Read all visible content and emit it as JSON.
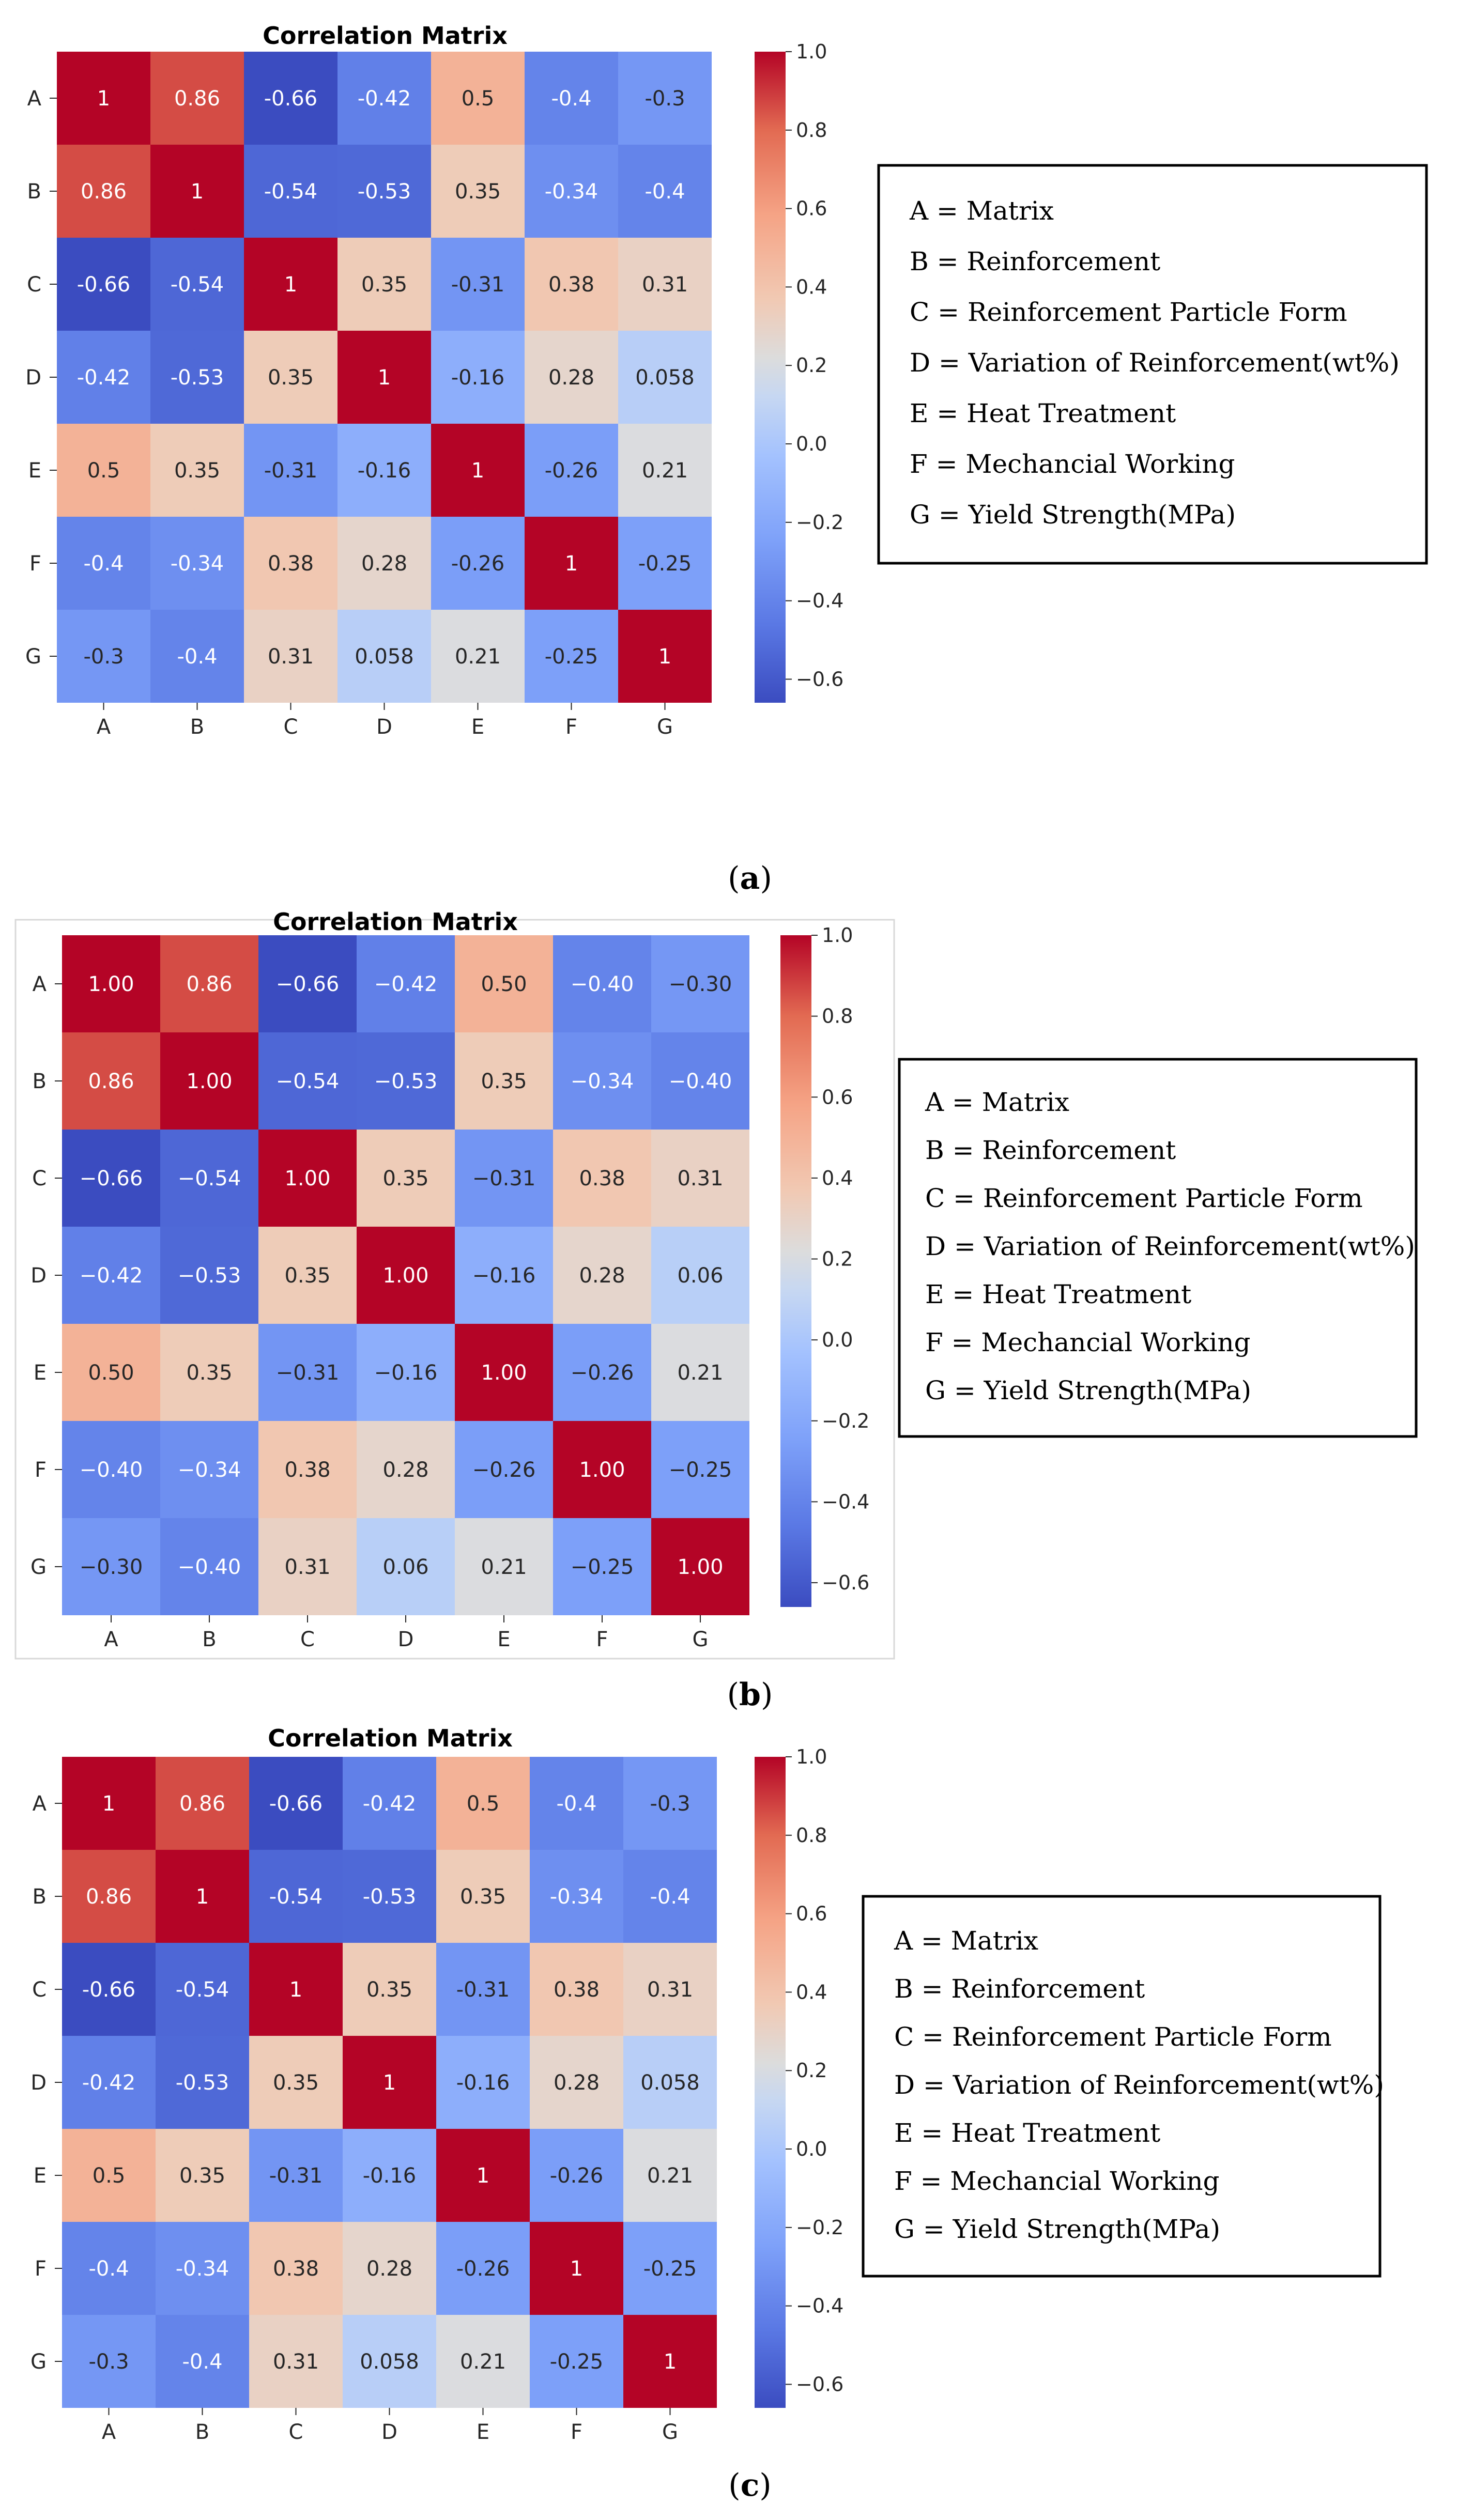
{
  "legend_lines": [
    "A = Matrix",
    "B = Reinforcement",
    "C = Reinforcement Particle Form",
    "D = Variation of Reinforcement(wt%)",
    "E = Heat Treatment",
    "F = Mechancial Working",
    "G = Yield Strength(MPa)"
  ],
  "colors": {
    "low": "#3b4cc0",
    "mid": "#dddddd",
    "high": "#b40426",
    "frame": "#000000"
  },
  "chart_data": [
    {
      "type": "heatmap",
      "title": "Correlation Matrix",
      "caption": "a",
      "categories": [
        "A",
        "B",
        "C",
        "D",
        "E",
        "F",
        "G"
      ],
      "values": [
        [
          1,
          0.86,
          -0.66,
          -0.42,
          0.5,
          -0.4,
          -0.3
        ],
        [
          0.86,
          1,
          -0.54,
          -0.53,
          0.35,
          -0.34,
          -0.4
        ],
        [
          -0.66,
          -0.54,
          1,
          0.35,
          -0.31,
          0.38,
          0.31
        ],
        [
          -0.42,
          -0.53,
          0.35,
          1,
          -0.16,
          0.28,
          0.058
        ],
        [
          0.5,
          0.35,
          -0.31,
          -0.16,
          1,
          -0.26,
          0.21
        ],
        [
          -0.4,
          -0.34,
          0.38,
          0.28,
          -0.26,
          1,
          -0.25
        ],
        [
          -0.3,
          -0.4,
          0.31,
          0.058,
          0.21,
          -0.25,
          1
        ]
      ],
      "labels": [
        [
          "1",
          "0.86",
          "-0.66",
          "-0.42",
          "0.5",
          "-0.4",
          "-0.3"
        ],
        [
          "0.86",
          "1",
          "-0.54",
          "-0.53",
          "0.35",
          "-0.34",
          "-0.4"
        ],
        [
          "-0.66",
          "-0.54",
          "1",
          "0.35",
          "-0.31",
          "0.38",
          "0.31"
        ],
        [
          "-0.42",
          "-0.53",
          "0.35",
          "1",
          "-0.16",
          "0.28",
          "0.058"
        ],
        [
          "0.5",
          "0.35",
          "-0.31",
          "-0.16",
          "1",
          "-0.26",
          "0.21"
        ],
        [
          "-0.4",
          "-0.34",
          "0.38",
          "0.28",
          "-0.26",
          "1",
          "-0.25"
        ],
        [
          "-0.3",
          "-0.4",
          "0.31",
          "0.058",
          "0.21",
          "-0.25",
          "1"
        ]
      ],
      "colorbar": {
        "range": [
          -0.66,
          1.0
        ],
        "ticks": [
          "1.0",
          "0.8",
          "0.6",
          "0.4",
          "0.2",
          "0.0",
          "−0.2",
          "−0.4",
          "−0.6"
        ],
        "tick_values": [
          1.0,
          0.8,
          0.6,
          0.4,
          0.2,
          0.0,
          -0.2,
          -0.4,
          -0.6
        ]
      }
    },
    {
      "type": "heatmap",
      "title": "Correlation Matrix",
      "caption": "b",
      "categories": [
        "A",
        "B",
        "C",
        "D",
        "E",
        "F",
        "G"
      ],
      "values": [
        [
          1,
          0.86,
          -0.66,
          -0.42,
          0.5,
          -0.4,
          -0.3
        ],
        [
          0.86,
          1,
          -0.54,
          -0.53,
          0.35,
          -0.34,
          -0.4
        ],
        [
          -0.66,
          -0.54,
          1,
          0.35,
          -0.31,
          0.38,
          0.31
        ],
        [
          -0.42,
          -0.53,
          0.35,
          1,
          -0.16,
          0.28,
          0.06
        ],
        [
          0.5,
          0.35,
          -0.31,
          -0.16,
          1,
          -0.26,
          0.21
        ],
        [
          -0.4,
          -0.34,
          0.38,
          0.28,
          -0.26,
          1,
          -0.25
        ],
        [
          -0.3,
          -0.4,
          0.31,
          0.06,
          0.21,
          -0.25,
          1
        ]
      ],
      "labels": [
        [
          "1.00",
          "0.86",
          "−0.66",
          "−0.42",
          "0.50",
          "−0.40",
          "−0.30"
        ],
        [
          "0.86",
          "1.00",
          "−0.54",
          "−0.53",
          "0.35",
          "−0.34",
          "−0.40"
        ],
        [
          "−0.66",
          "−0.54",
          "1.00",
          "0.35",
          "−0.31",
          "0.38",
          "0.31"
        ],
        [
          "−0.42",
          "−0.53",
          "0.35",
          "1.00",
          "−0.16",
          "0.28",
          "0.06"
        ],
        [
          "0.50",
          "0.35",
          "−0.31",
          "−0.16",
          "1.00",
          "−0.26",
          "0.21"
        ],
        [
          "−0.40",
          "−0.34",
          "0.38",
          "0.28",
          "−0.26",
          "1.00",
          "−0.25"
        ],
        [
          "−0.30",
          "−0.40",
          "0.31",
          "0.06",
          "0.21",
          "−0.25",
          "1.00"
        ]
      ],
      "colorbar": {
        "range": [
          -0.66,
          1.0
        ],
        "ticks": [
          "1.0",
          "0.8",
          "0.6",
          "0.4",
          "0.2",
          "0.0",
          "−0.2",
          "−0.4",
          "−0.6"
        ],
        "tick_values": [
          1.0,
          0.8,
          0.6,
          0.4,
          0.2,
          0.0,
          -0.2,
          -0.4,
          -0.6
        ]
      }
    },
    {
      "type": "heatmap",
      "title": "Correlation Matrix",
      "caption": "c",
      "categories": [
        "A",
        "B",
        "C",
        "D",
        "E",
        "F",
        "G"
      ],
      "values": [
        [
          1,
          0.86,
          -0.66,
          -0.42,
          0.5,
          -0.4,
          -0.3
        ],
        [
          0.86,
          1,
          -0.54,
          -0.53,
          0.35,
          -0.34,
          -0.4
        ],
        [
          -0.66,
          -0.54,
          1,
          0.35,
          -0.31,
          0.38,
          0.31
        ],
        [
          -0.42,
          -0.53,
          0.35,
          1,
          -0.16,
          0.28,
          0.058
        ],
        [
          0.5,
          0.35,
          -0.31,
          -0.16,
          1,
          -0.26,
          0.21
        ],
        [
          -0.4,
          -0.34,
          0.38,
          0.28,
          -0.26,
          1,
          -0.25
        ],
        [
          -0.3,
          -0.4,
          0.31,
          0.058,
          0.21,
          -0.25,
          1
        ]
      ],
      "labels": [
        [
          "1",
          "0.86",
          "-0.66",
          "-0.42",
          "0.5",
          "-0.4",
          "-0.3"
        ],
        [
          "0.86",
          "1",
          "-0.54",
          "-0.53",
          "0.35",
          "-0.34",
          "-0.4"
        ],
        [
          "-0.66",
          "-0.54",
          "1",
          "0.35",
          "-0.31",
          "0.38",
          "0.31"
        ],
        [
          "-0.42",
          "-0.53",
          "0.35",
          "1",
          "-0.16",
          "0.28",
          "0.058"
        ],
        [
          "0.5",
          "0.35",
          "-0.31",
          "-0.16",
          "1",
          "-0.26",
          "0.21"
        ],
        [
          "-0.4",
          "-0.34",
          "0.38",
          "0.28",
          "-0.26",
          "1",
          "-0.25"
        ],
        [
          "-0.3",
          "-0.4",
          "0.31",
          "0.058",
          "0.21",
          "-0.25",
          "1"
        ]
      ],
      "colorbar": {
        "range": [
          -0.66,
          1.0
        ],
        "ticks": [
          "1.0",
          "0.8",
          "0.6",
          "0.4",
          "0.2",
          "0.0",
          "−0.2",
          "−0.4",
          "−0.6"
        ],
        "tick_values": [
          1.0,
          0.8,
          0.6,
          0.4,
          0.2,
          0.0,
          -0.2,
          -0.4,
          -0.6
        ]
      }
    }
  ]
}
